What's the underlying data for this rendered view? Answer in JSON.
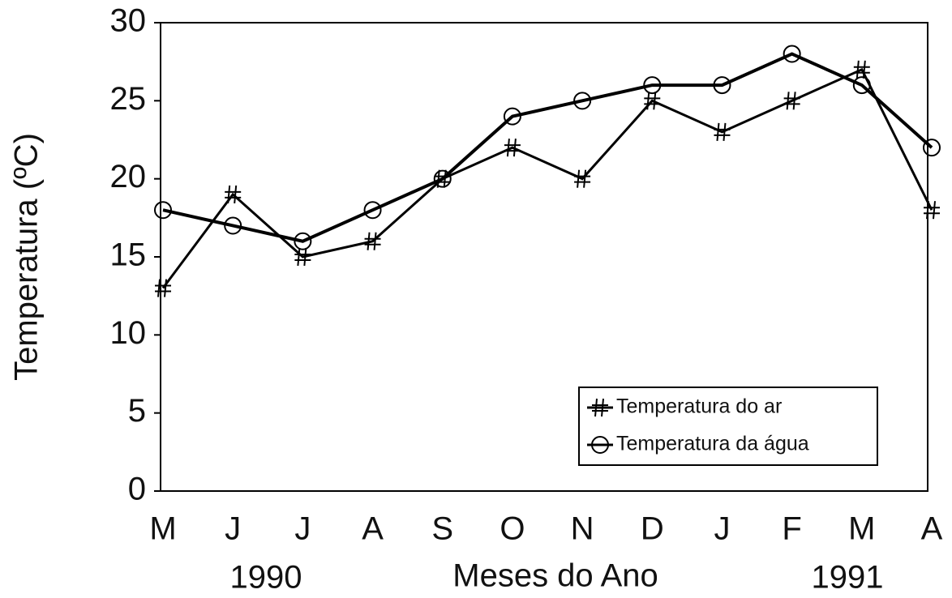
{
  "chart_data": {
    "type": "line",
    "y_label": "Temperatura (ºC)",
    "x_label": "Meses do Ano",
    "annotations": [
      "1990",
      "1991"
    ],
    "categories": [
      "M",
      "J",
      "J",
      "A",
      "S",
      "O",
      "N",
      "D",
      "J",
      "F",
      "M",
      "A"
    ],
    "series": [
      {
        "name": "Temperatura do ar",
        "color": "#000000",
        "marker": "hash",
        "values": [
          13,
          19,
          15,
          16,
          20,
          22,
          20,
          25,
          23,
          25,
          27,
          18
        ]
      },
      {
        "name": "Temperatura da água",
        "color": "#000000",
        "marker": "circle",
        "values": [
          18,
          17,
          16,
          18,
          20,
          24,
          25,
          26,
          26,
          28,
          26,
          22
        ]
      }
    ],
    "ylim": [
      0,
      30
    ],
    "yticks": [
      0,
      5,
      10,
      15,
      20,
      25,
      30
    ],
    "grid": false,
    "legend": "lower right"
  }
}
